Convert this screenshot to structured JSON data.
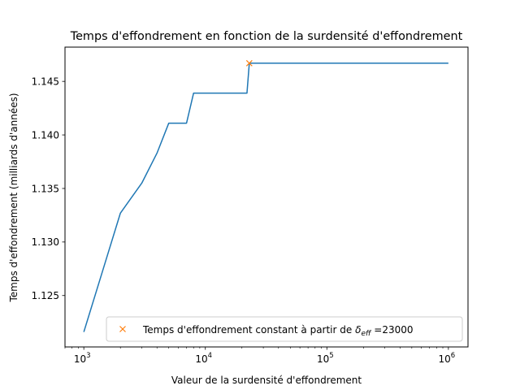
{
  "chart_data": {
    "type": "line",
    "title": "Temps d'effondrement en fonction de la surdensité d'effondrement",
    "xlabel": "Valeur de la surdensité d'effondrement",
    "ylabel": "Temps d'effondrement (milliards d'années)",
    "x_scale": "log",
    "xlim": [
      700,
      1450000
    ],
    "ylim": [
      1.1202,
      1.1482
    ],
    "x_ticks": [
      {
        "value": 1000,
        "base": "10",
        "exp": "3"
      },
      {
        "value": 10000,
        "base": "10",
        "exp": "4"
      },
      {
        "value": 100000,
        "base": "10",
        "exp": "5"
      },
      {
        "value": 1000000,
        "base": "10",
        "exp": "6"
      }
    ],
    "y_ticks": [
      {
        "value": 1.125,
        "label": "1.125"
      },
      {
        "value": 1.13,
        "label": "1.130"
      },
      {
        "value": 1.135,
        "label": "1.135"
      },
      {
        "value": 1.14,
        "label": "1.140"
      },
      {
        "value": 1.145,
        "label": "1.145"
      }
    ],
    "series": [
      {
        "type": "line",
        "color": "#1f77b4",
        "x": [
          1000,
          2000,
          3000,
          4000,
          5000,
          7000,
          8000,
          22000,
          23000,
          30000,
          100000,
          1000000
        ],
        "y": [
          1.1216,
          1.1327,
          1.1355,
          1.1383,
          1.1411,
          1.1411,
          1.1439,
          1.1439,
          1.1467,
          1.1467,
          1.1467,
          1.1467
        ]
      },
      {
        "name": "Temps d'effondrement constant à partir de δeff =23000",
        "type": "scatter",
        "marker": "x",
        "color": "#ff7f0e",
        "x": [
          23000
        ],
        "y": [
          1.1467
        ]
      }
    ],
    "legend": {
      "placement": "lower-right",
      "text_before": "Temps d'effondrement constant à partir de ",
      "symbol": "δ",
      "subscript": "eff",
      "text_after": " =23000"
    },
    "grid": false
  }
}
